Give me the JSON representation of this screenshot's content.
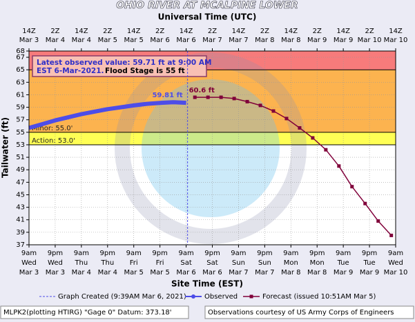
{
  "chart_data": {
    "type": "hydrograph",
    "title": "OHIO RIVER AT MCALPINE LOWER",
    "top_axis_title": "Universal Time (UTC)",
    "x_label": "Site Time (EST)",
    "y_label": "Tailwater (ft)",
    "xlim": [
      "Mar 3 09:00",
      "Mar 10 09:00"
    ],
    "ylim": [
      37,
      68
    ],
    "yticks": [
      37,
      39,
      41,
      43,
      45,
      47,
      49,
      51,
      53,
      55,
      57,
      59,
      61,
      63,
      65,
      67,
      68
    ],
    "grid": true,
    "xticks": [
      {
        "value": "Mar 3 09:00",
        "label": "9am Wed Mar 3"
      },
      {
        "value": "Mar 3 21:00",
        "label": "9pm Wed Mar 3"
      },
      {
        "value": "Mar 4 09:00",
        "label": "9am Thu Mar 4"
      },
      {
        "value": "Mar 4 21:00",
        "label": "9pm Thu Mar 4"
      },
      {
        "value": "Mar 5 09:00",
        "label": "9am Fri Mar 5"
      },
      {
        "value": "Mar 5 21:00",
        "label": "9pm Fri Mar 5"
      },
      {
        "value": "Mar 6 09:00",
        "label": "9am Sat Mar 6"
      },
      {
        "value": "Mar 6 21:00",
        "label": "9pm Sat Mar 6"
      },
      {
        "value": "Mar 7 09:00",
        "label": "9am Sun Mar 7"
      },
      {
        "value": "Mar 7 21:00",
        "label": "9pm Sun Mar 7"
      },
      {
        "value": "Mar 8 09:00",
        "label": "9am Mon Mar 8"
      },
      {
        "value": "Mar 8 21:00",
        "label": "9pm Mon Mar 8"
      },
      {
        "value": "Mar 9 09:00",
        "label": "9am Tue Mar 9"
      },
      {
        "value": "Mar 9 21:00",
        "label": "9pm Tue Mar 9"
      },
      {
        "value": "Mar 10 09:00",
        "label": "9am Wed Mar 10"
      }
    ],
    "x2ticks": [
      {
        "value": "Mar 3 09:00",
        "label": "14Z Mar 3"
      },
      {
        "value": "Mar 3 21:00",
        "label": "2Z Mar 4"
      },
      {
        "value": "Mar 4 09:00",
        "label": "14Z Mar 4"
      },
      {
        "value": "Mar 4 21:00",
        "label": "2Z Mar 5"
      },
      {
        "value": "Mar 5 09:00",
        "label": "14Z Mar 5"
      },
      {
        "value": "Mar 5 21:00",
        "label": "2Z Mar 6"
      },
      {
        "value": "Mar 6 09:00",
        "label": "14Z Mar 6"
      },
      {
        "value": "Mar 6 21:00",
        "label": "2Z Mar 7"
      },
      {
        "value": "Mar 7 09:00",
        "label": "14Z Mar 7"
      },
      {
        "value": "Mar 7 21:00",
        "label": "2Z Mar 8"
      },
      {
        "value": "Mar 8 09:00",
        "label": "14Z Mar 8"
      },
      {
        "value": "Mar 8 21:00",
        "label": "2Z Mar 9"
      },
      {
        "value": "Mar 9 09:00",
        "label": "14Z Mar 9"
      },
      {
        "value": "Mar 9 21:00",
        "label": "2Z Mar 10"
      },
      {
        "value": "Mar 10 09:00",
        "label": "14Z Mar 10"
      }
    ],
    "bands": [
      {
        "value": 65,
        "color": "#f77b7b"
      },
      {
        "value": 55,
        "color": "#fcb34f",
        "label": "Minor: 55.0'"
      },
      {
        "value": 53,
        "color": "#ffff55",
        "label": "Action: 53.0'"
      }
    ],
    "series": [
      {
        "name": "Observed",
        "color": "#4d4de8",
        "x": [
          "Mar 3 09:00",
          "Mar 3 15:00",
          "Mar 3 21:00",
          "Mar 4 03:00",
          "Mar 4 09:00",
          "Mar 4 15:00",
          "Mar 4 21:00",
          "Mar 5 03:00",
          "Mar 5 09:00",
          "Mar 5 15:00",
          "Mar 5 21:00",
          "Mar 6 03:00",
          "Mar 6 09:00"
        ],
        "values": [
          55.7,
          56.3,
          56.9,
          57.4,
          57.9,
          58.3,
          58.7,
          59.0,
          59.3,
          59.55,
          59.7,
          59.81,
          59.71
        ],
        "peak_label": "59.81 ft"
      },
      {
        "name": "Forecast (issued 10:51AM Mar 5)",
        "color": "#80003a",
        "x": [
          "Mar 6 13:00",
          "Mar 6 19:00",
          "Mar 7 01:00",
          "Mar 7 07:00",
          "Mar 7 13:00",
          "Mar 7 19:00",
          "Mar 8 01:00",
          "Mar 8 07:00",
          "Mar 8 13:00",
          "Mar 8 19:00",
          "Mar 9 01:00",
          "Mar 9 07:00",
          "Mar 9 13:00",
          "Mar 9 19:00",
          "Mar 10 01:00",
          "Mar 10 07:00"
        ],
        "values": [
          60.6,
          60.6,
          60.6,
          60.4,
          59.9,
          59.3,
          58.4,
          57.2,
          55.7,
          54.1,
          52.2,
          49.6,
          46.3,
          43.6,
          40.8,
          38.5
        ],
        "peak_label": "60.6 ft"
      }
    ],
    "graph_created": {
      "x": "Mar 6 09:39",
      "label": "Graph Created (9:39AM Mar 6, 2021)"
    },
    "info_box": {
      "lines": [
        "Latest observed value: 59.71 ft at 9:00 AM",
        "EST 6-Mar-2021."
      ],
      "flood_stage": "Flood Stage is 55 ft"
    },
    "footer_left": "MLPK2(plotting HTIRG) \"Gage 0\" Datum: 373.18'",
    "footer_right": "Observations courtesy of US Army Corps of Engineers"
  }
}
